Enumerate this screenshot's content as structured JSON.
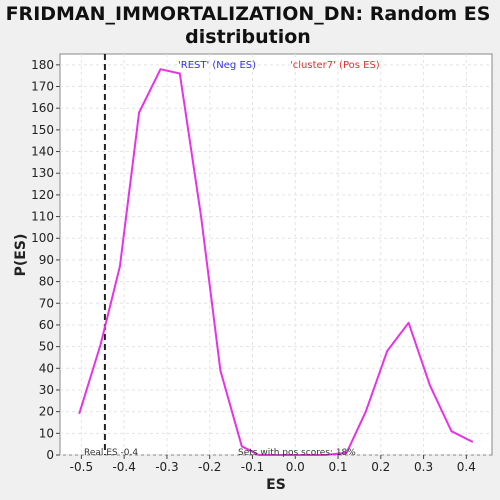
{
  "chart_data": {
    "type": "line",
    "title_line1": "FRIDMAN_IMMORTALIZATION_DN: Random ES",
    "title_line2": "distribution",
    "xlabel": "ES",
    "ylabel": "P(ES)",
    "xlim": [
      -0.55,
      0.46
    ],
    "ylim": [
      0,
      185
    ],
    "x_ticks": [
      -0.5,
      -0.4,
      -0.3,
      -0.2,
      -0.1,
      0.0,
      0.1,
      0.2,
      0.3,
      0.4
    ],
    "x_tick_labels": [
      "-0.5",
      "-0.4",
      "-0.3",
      "-0.2",
      "-0.1",
      "0.0",
      "0.1",
      "0.2",
      "0.3",
      "0.4"
    ],
    "y_ticks": [
      0,
      10,
      20,
      30,
      40,
      50,
      60,
      70,
      80,
      90,
      100,
      110,
      120,
      130,
      140,
      150,
      160,
      170,
      180
    ],
    "grid": true,
    "series": [
      {
        "color": "#e633e6",
        "x": [
          -0.505,
          -0.455,
          -0.41,
          -0.365,
          -0.315,
          -0.27,
          -0.22,
          -0.175,
          -0.125,
          -0.085,
          -0.03,
          0.02,
          0.07,
          0.12,
          0.165,
          0.215,
          0.265,
          0.315,
          0.365,
          0.415
        ],
        "y": [
          19,
          51,
          87,
          158,
          178,
          176,
          110,
          39,
          4,
          0,
          0,
          0,
          0,
          1,
          20,
          48,
          61,
          32,
          11,
          6
        ]
      }
    ],
    "real_es": -0.445,
    "legend": [
      {
        "label": "'REST' (Neg ES)",
        "color": "#3333dd",
        "position": "top-center-left"
      },
      {
        "label": "'cluster7' (Pos ES)",
        "color": "#dd3333",
        "position": "top-center-right"
      }
    ],
    "annotations": {
      "real_es_label": "Real ES -0.4",
      "pos_scores_label": "Sets with pos scores: 18%"
    }
  }
}
